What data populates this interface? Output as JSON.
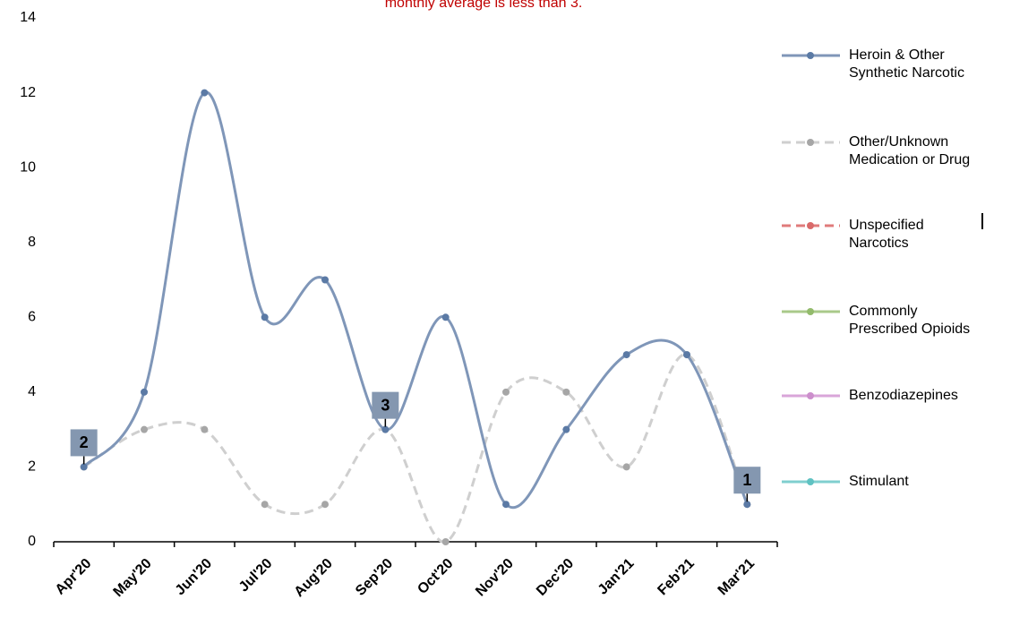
{
  "chart_data": {
    "type": "line",
    "title": "monthly average is less than 3.",
    "categories": [
      "Apr'20",
      "May'20",
      "Jun'20",
      "Jul'20",
      "Aug'20",
      "Sep'20",
      "Oct'20",
      "Nov'20",
      "Dec'20",
      "Jan'21",
      "Feb'21",
      "Mar'21"
    ],
    "series": [
      {
        "name": "Heroin & Other Synthetic Narcotic",
        "color": "#7f96b8",
        "marker_color": "#5b7aa5",
        "dashed": false,
        "values": [
          2,
          4,
          12,
          6,
          7,
          3,
          6,
          1,
          3,
          5,
          5,
          1
        ],
        "value_labels": [
          "2",
          null,
          null,
          null,
          null,
          "3",
          null,
          null,
          null,
          null,
          null,
          "1"
        ]
      },
      {
        "name": "Other/Unknown Medication or Drug",
        "color": "#cfcfcf",
        "marker_color": "#a6a6a6",
        "dashed": true,
        "values": [
          2,
          3,
          3,
          1,
          1,
          3,
          0,
          4,
          4,
          2,
          5,
          1
        ]
      },
      {
        "name": "Unspecified Narcotics",
        "color": "#e07b7b",
        "marker_color": "#d96a6a",
        "dashed": true,
        "values": [
          null,
          null,
          null,
          null,
          null,
          null,
          null,
          null,
          null,
          null,
          null,
          null
        ]
      },
      {
        "name": "Commonly Prescribed Opioids",
        "color": "#a9c98a",
        "marker_color": "#93bb6c",
        "dashed": false,
        "values": [
          null,
          null,
          null,
          null,
          null,
          null,
          null,
          null,
          null,
          null,
          null,
          null
        ]
      },
      {
        "name": "Benzodiazepines",
        "color": "#d9a5d9",
        "marker_color": "#cc8fcc",
        "dashed": false,
        "values": [
          null,
          null,
          null,
          null,
          null,
          null,
          null,
          null,
          null,
          null,
          null,
          null
        ]
      },
      {
        "name": "Stimulant",
        "color": "#7fcfcf",
        "marker_color": "#5fc2c2",
        "dashed": false,
        "values": [
          null,
          null,
          null,
          null,
          null,
          null,
          null,
          null,
          null,
          null,
          null,
          null
        ]
      }
    ],
    "ylim": [
      0,
      14
    ],
    "yticks": [
      0,
      2,
      4,
      6,
      8,
      10,
      12,
      14
    ],
    "grid": false,
    "legend": "right"
  }
}
